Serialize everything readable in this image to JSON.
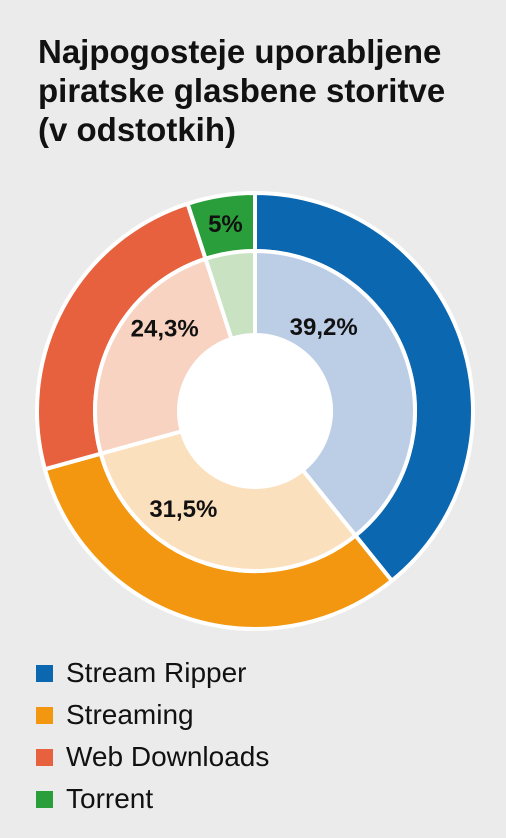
{
  "chart_data": {
    "type": "pie",
    "title_lines": [
      "Najpogosteje uporabljene",
      "piratske glasbene storitve",
      "(v odstotkih)"
    ],
    "categories": [
      "Stream Ripper",
      "Streaming",
      "Web Downloads",
      "Torrent"
    ],
    "values": [
      39.2,
      31.5,
      24.3,
      5
    ],
    "value_labels": [
      "39,2%",
      "31,5%",
      "24,3%",
      "5%"
    ],
    "colors": {
      "outer": [
        "#0a67b0",
        "#f2970f",
        "#e8613e",
        "#2a9e3a"
      ],
      "inner": [
        "#bccde6",
        "#fbe0bd",
        "#f8d3c2",
        "#c8e2c2"
      ]
    },
    "legend_position": "bottom-left",
    "grid": false
  }
}
